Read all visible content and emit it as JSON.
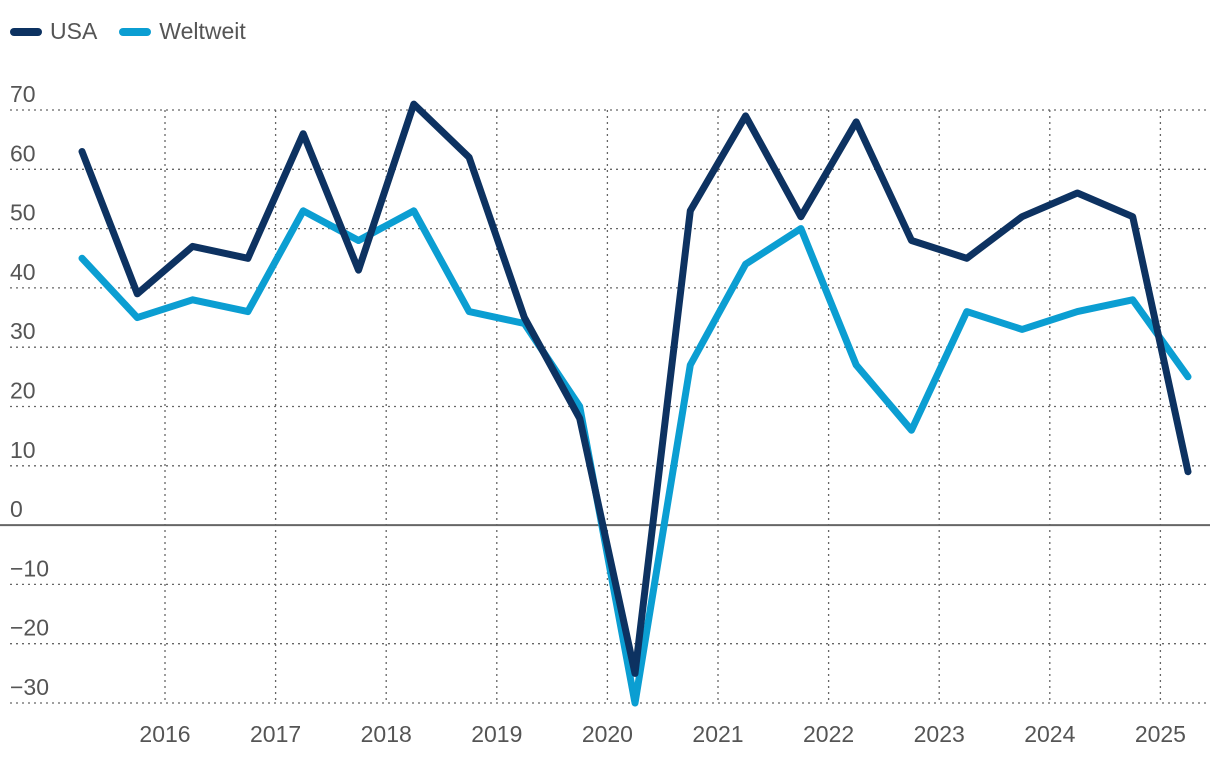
{
  "chart_data": {
    "type": "line",
    "title": "",
    "xlabel": "",
    "ylabel": "",
    "ylim": [
      -30,
      70
    ],
    "yticks": [
      70,
      60,
      50,
      40,
      30,
      20,
      10,
      0,
      -10,
      -20,
      -30
    ],
    "ytick_labels": [
      "70",
      "60",
      "50",
      "40",
      "30",
      "20",
      "10",
      "0",
      "−10",
      "−20",
      "−30"
    ],
    "xtick_labels": [
      "2016",
      "2017",
      "2018",
      "2019",
      "2020",
      "2021",
      "2022",
      "2023",
      "2024",
      "2025"
    ],
    "x": [
      "2015 Q2",
      "2015 Q4",
      "2016 Q2",
      "2016 Q4",
      "2017 Q2",
      "2017 Q4",
      "2018 Q2",
      "2018 Q4",
      "2019 Q2",
      "2019 Q4",
      "2020 Q2",
      "2020 Q4",
      "2021 Q2",
      "2021 Q4",
      "2022 Q2",
      "2022 Q4",
      "2023 Q2",
      "2023 Q4",
      "2024 Q2",
      "2024 Q4",
      "2025 Q2"
    ],
    "grid": true,
    "legend_position": "top-left",
    "series": [
      {
        "name": "USA",
        "color": "#0d3261",
        "values": [
          63,
          39,
          47,
          45,
          66,
          43,
          71,
          62,
          35,
          18,
          -25,
          53,
          69,
          52,
          68,
          48,
          45,
          52,
          56,
          52,
          9
        ]
      },
      {
        "name": "Weltweit",
        "color": "#0b9ed2",
        "values": [
          45,
          35,
          38,
          36,
          53,
          48,
          53,
          36,
          34,
          20,
          -30,
          27,
          44,
          50,
          27,
          16,
          36,
          33,
          36,
          38,
          25
        ]
      }
    ]
  }
}
